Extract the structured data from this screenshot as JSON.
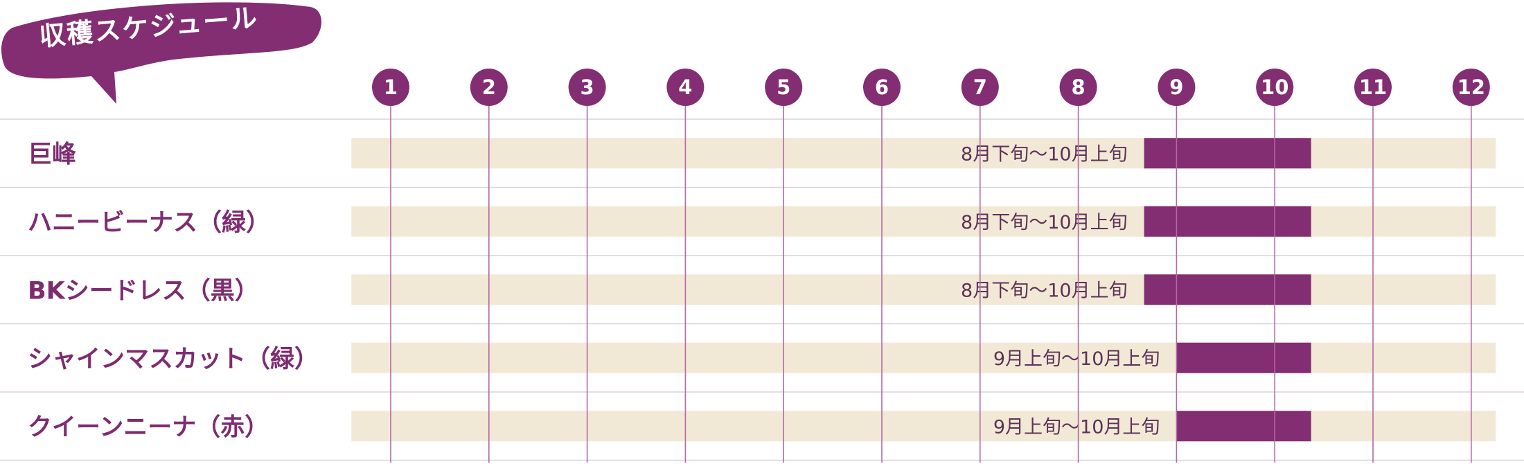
{
  "header": {
    "title": "収穫スケジュール"
  },
  "colors": {
    "accent": "#832d73",
    "track": "#f1e9d6",
    "grid": "#b26aa3",
    "separator": "#dcd0dc",
    "label_text": "#7e2b70",
    "bar_label_text": "#5e3157"
  },
  "chart_data": {
    "type": "bar",
    "orientation": "horizontal-range",
    "title": "収穫スケジュール",
    "x_unit": "month",
    "x_ticks": [
      "1",
      "2",
      "3",
      "4",
      "5",
      "6",
      "7",
      "8",
      "9",
      "10",
      "11",
      "12"
    ],
    "xlim": [
      0.6,
      12.25
    ],
    "grid": true,
    "series": [
      {
        "variety": "巨峰",
        "start_month": 8.67,
        "end_month": 10.37,
        "label": "8月下旬〜10月上旬"
      },
      {
        "variety": "ハニービーナス（緑）",
        "start_month": 8.67,
        "end_month": 10.37,
        "label": "8月下旬〜10月上旬"
      },
      {
        "variety": "BKシードレス（黒）",
        "start_month": 8.67,
        "end_month": 10.37,
        "label": "8月下旬〜10月上旬"
      },
      {
        "variety": "シャインマスカット（緑）",
        "start_month": 9.0,
        "end_month": 10.37,
        "label": "9月上旬〜10月上旬"
      },
      {
        "variety": "クイーンニーナ（赤）",
        "start_month": 9.0,
        "end_month": 10.37,
        "label": "9月上旬〜10月上旬"
      }
    ]
  }
}
